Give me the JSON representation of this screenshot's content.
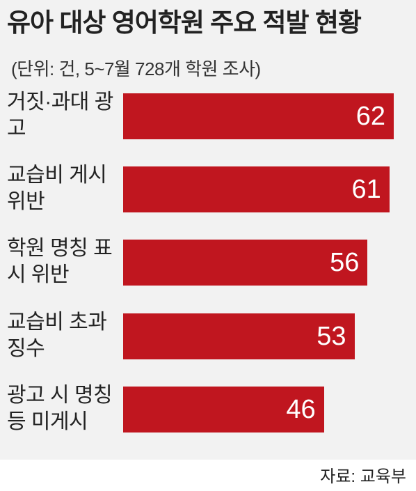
{
  "chart_data": {
    "type": "bar",
    "orientation": "horizontal",
    "title": "유아 대상 영어학원 주요 적발 현황",
    "subtitle": "(단위: 건, 5~7월 728개 학원 조사)",
    "categories": [
      "거짓·과대 광고",
      "교습비 게시 위반",
      "학원 명칭 표시 위반",
      "교습비 초과 징수",
      "광고 시 명칭 등 미게시"
    ],
    "values": [
      62,
      61,
      56,
      53,
      46
    ],
    "color": "#c0161f",
    "source": "자료: 교육부"
  }
}
